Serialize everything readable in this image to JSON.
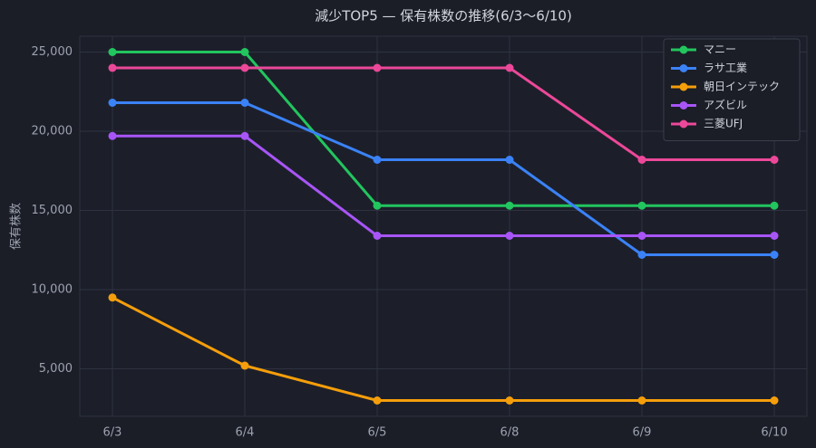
{
  "chart_data": {
    "type": "line",
    "title": "減少TOP5 — 保有株数の推移(6/3〜6/10)",
    "y_label": "保有株数",
    "categories": [
      "6/3",
      "6/4",
      "6/5",
      "6/8",
      "6/9",
      "6/10"
    ],
    "series": [
      {
        "name": "マニー",
        "color": "#22c55e",
        "values": [
          25000,
          25000,
          15300,
          15300,
          15300,
          15300
        ]
      },
      {
        "name": "ラサ工業",
        "color": "#3b82f6",
        "values": [
          21800,
          21800,
          18200,
          18200,
          12200,
          12200
        ]
      },
      {
        "name": "朝日インテック",
        "color": "#f59e0b",
        "values": [
          9500,
          5200,
          3000,
          3000,
          3000,
          3000
        ]
      },
      {
        "name": "アズビル",
        "color": "#a855f7",
        "values": [
          19700,
          19700,
          13400,
          13400,
          13400,
          13400
        ]
      },
      {
        "name": "三菱UFJ",
        "color": "#ec4899",
        "values": [
          24000,
          24000,
          24000,
          24000,
          18200,
          18200
        ]
      }
    ],
    "ylim": [
      2000,
      26000
    ],
    "yticks": [
      {
        "value": 5000,
        "label": "5,000"
      },
      {
        "value": 10000,
        "label": "10,000"
      },
      {
        "value": 15000,
        "label": "15,000"
      },
      {
        "value": 20000,
        "label": "20,000"
      },
      {
        "value": 25000,
        "label": "25,000"
      }
    ],
    "grid": true,
    "legend": "upper right"
  }
}
